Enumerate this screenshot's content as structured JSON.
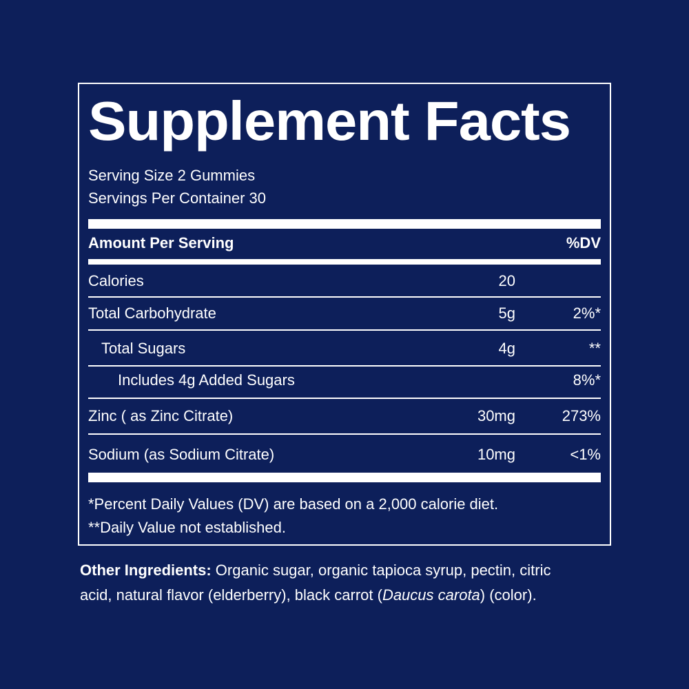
{
  "title": "Supplement Facts",
  "serving_size": "Serving Size 2 Gummies",
  "servings_per_container": "Servings Per Container 30",
  "header": {
    "amount": "Amount Per Serving",
    "dv": "%DV"
  },
  "rows": [
    {
      "name": "Calories",
      "amount": "20",
      "dv": ""
    },
    {
      "name": "Total Carbohydrate",
      "amount": "5g",
      "dv": "2%*"
    },
    {
      "name": "Total Sugars",
      "amount": "4g",
      "dv": "**"
    },
    {
      "name": "Includes 4g Added Sugars",
      "amount": "",
      "dv": "8%*"
    },
    {
      "name": "Zinc ( as Zinc Citrate)",
      "amount": "30mg",
      "dv": "273%"
    },
    {
      "name": "Sodium (as Sodium Citrate)",
      "amount": "10mg",
      "dv": "<1%"
    }
  ],
  "footnotes": [
    "*Percent Daily Values (DV) are based on a 2,000 calorie diet.",
    "**Daily Value not established."
  ],
  "other_ingredients": {
    "label": "Other Ingredients:",
    "text1": " Organic sugar, organic tapioca syrup, pectin, citric",
    "text2a": "acid, natural flavor (elderberry), black carrot (",
    "italic": "Daucus carota",
    "text2b": ") (color)."
  },
  "colors": {
    "background": "#0d1f5a",
    "foreground": "#ffffff"
  }
}
